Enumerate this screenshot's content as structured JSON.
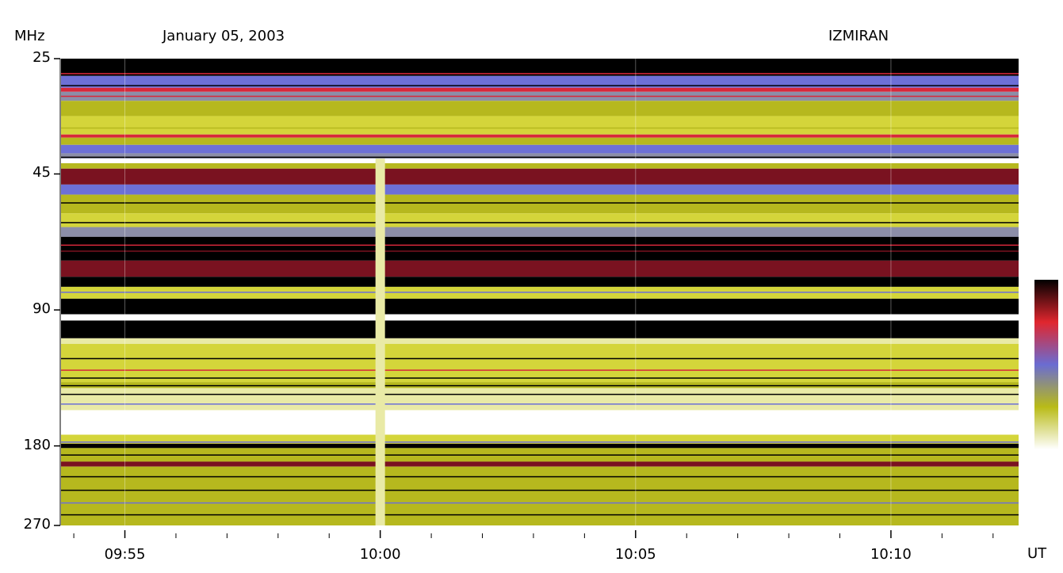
{
  "header": {
    "unit": "MHz",
    "date": "January 05, 2003",
    "station": "IZMIRAN"
  },
  "chart_data": {
    "type": "heatmap",
    "title": "January 05, 2003",
    "station": "IZMIRAN",
    "ylabel": "MHz",
    "xlabel": "UT",
    "y_scale": "log",
    "y_range": [
      25,
      270
    ],
    "y_ticks": [
      "25",
      "45",
      "90",
      "180",
      "270"
    ],
    "y_tick_values": [
      25,
      45,
      90,
      180,
      270
    ],
    "x_range": [
      "09:53:45",
      "10:12:30"
    ],
    "x_ticks": [
      "09:55",
      "10:00",
      "10:05",
      "10:10"
    ],
    "x_tick_minutes": [
      5,
      10,
      15,
      20
    ],
    "x_minor_tick_minutes_start": 4,
    "x_minor_tick_minutes_end": 22,
    "colorbar": [
      "#000000",
      "#e0262e",
      "#6a6cd2",
      "#b9bb17",
      "#ffffff"
    ],
    "palette": {
      "black": "#000000",
      "darkred": "#7a1220",
      "red": "#d8283a",
      "blue": "#6d70d6",
      "grayblue": "#8c8ea8",
      "olive": "#b6b81e",
      "yellow": "#d4d53a",
      "pale": "#e9eaa6",
      "white": "#ffffff"
    },
    "bands": [
      {
        "f0": 25,
        "f1": 27.3,
        "c": "black"
      },
      {
        "f0": 27.3,
        "f1": 29.0,
        "c": "blue"
      },
      {
        "f0": 29.0,
        "f1": 29.6,
        "c": "red"
      },
      {
        "f0": 29.6,
        "f1": 31.0,
        "c": "grayblue"
      },
      {
        "f0": 31.0,
        "f1": 33.5,
        "c": "olive"
      },
      {
        "f0": 33.5,
        "f1": 36.8,
        "c": "yellow"
      },
      {
        "f0": 36.8,
        "f1": 37.4,
        "c": "red"
      },
      {
        "f0": 37.4,
        "f1": 38.8,
        "c": "olive"
      },
      {
        "f0": 38.8,
        "f1": 40.5,
        "c": "blue"
      },
      {
        "f0": 40.5,
        "f1": 41.6,
        "c": "grayblue"
      },
      {
        "f0": 41.6,
        "f1": 42.6,
        "c": "white"
      },
      {
        "f0": 42.6,
        "f1": 43.8,
        "c": "olive"
      },
      {
        "f0": 43.8,
        "f1": 47.5,
        "c": "darkred"
      },
      {
        "f0": 47.5,
        "f1": 50.0,
        "c": "blue"
      },
      {
        "f0": 50.0,
        "f1": 55.0,
        "c": "olive"
      },
      {
        "f0": 55.0,
        "f1": 59.0,
        "c": "yellow"
      },
      {
        "f0": 59.0,
        "f1": 62.0,
        "c": "grayblue"
      },
      {
        "f0": 62.0,
        "f1": 70.0,
        "c": "black"
      },
      {
        "f0": 70.0,
        "f1": 76.0,
        "c": "darkred"
      },
      {
        "f0": 76.0,
        "f1": 80.0,
        "c": "black"
      },
      {
        "f0": 80.0,
        "f1": 85.0,
        "c": "yellow"
      },
      {
        "f0": 85.0,
        "f1": 92.0,
        "c": "black"
      },
      {
        "f0": 92.0,
        "f1": 95.0,
        "c": "white"
      },
      {
        "f0": 95.0,
        "f1": 104.0,
        "c": "black"
      },
      {
        "f0": 104.0,
        "f1": 107.0,
        "c": "pale"
      },
      {
        "f0": 107.0,
        "f1": 130.0,
        "c": "yellow"
      },
      {
        "f0": 130.0,
        "f1": 134.0,
        "c": "olive"
      },
      {
        "f0": 134.0,
        "f1": 150.0,
        "c": "pale"
      },
      {
        "f0": 150.0,
        "f1": 170.0,
        "c": "white"
      },
      {
        "f0": 170.0,
        "f1": 178.0,
        "c": "yellow"
      },
      {
        "f0": 178.0,
        "f1": 182.0,
        "c": "black"
      },
      {
        "f0": 182.0,
        "f1": 195.0,
        "c": "olive"
      },
      {
        "f0": 195.0,
        "f1": 200.0,
        "c": "darkred"
      },
      {
        "f0": 200.0,
        "f1": 270.0,
        "c": "olive"
      }
    ],
    "thin_lines": [
      {
        "f": 26.9,
        "c": "red"
      },
      {
        "f": 28.6,
        "c": "black"
      },
      {
        "f": 30.2,
        "c": "red"
      },
      {
        "f": 35.5,
        "c": "olive"
      },
      {
        "f": 41.2,
        "c": "black"
      },
      {
        "f": 52.0,
        "c": "black"
      },
      {
        "f": 57.5,
        "c": "black"
      },
      {
        "f": 64.5,
        "c": "red"
      },
      {
        "f": 66.5,
        "c": "darkred"
      },
      {
        "f": 82.0,
        "c": "blue"
      },
      {
        "f": 115.0,
        "c": "black"
      },
      {
        "f": 122.0,
        "c": "red"
      },
      {
        "f": 127.0,
        "c": "black"
      },
      {
        "f": 132.0,
        "c": "black"
      },
      {
        "f": 138.0,
        "c": "black"
      },
      {
        "f": 145.0,
        "c": "blue"
      },
      {
        "f": 176.0,
        "c": "blue"
      },
      {
        "f": 188.0,
        "c": "black"
      },
      {
        "f": 210.0,
        "c": "black"
      },
      {
        "f": 225.0,
        "c": "black"
      },
      {
        "f": 240.0,
        "c": "blue"
      },
      {
        "f": 255.0,
        "c": "black"
      }
    ],
    "vertical_streak": {
      "minute": 10.0,
      "f0": 41.6,
      "f1": 270,
      "c": "pale"
    },
    "faint_verticals": [
      5.0,
      15.0,
      20.0
    ]
  }
}
